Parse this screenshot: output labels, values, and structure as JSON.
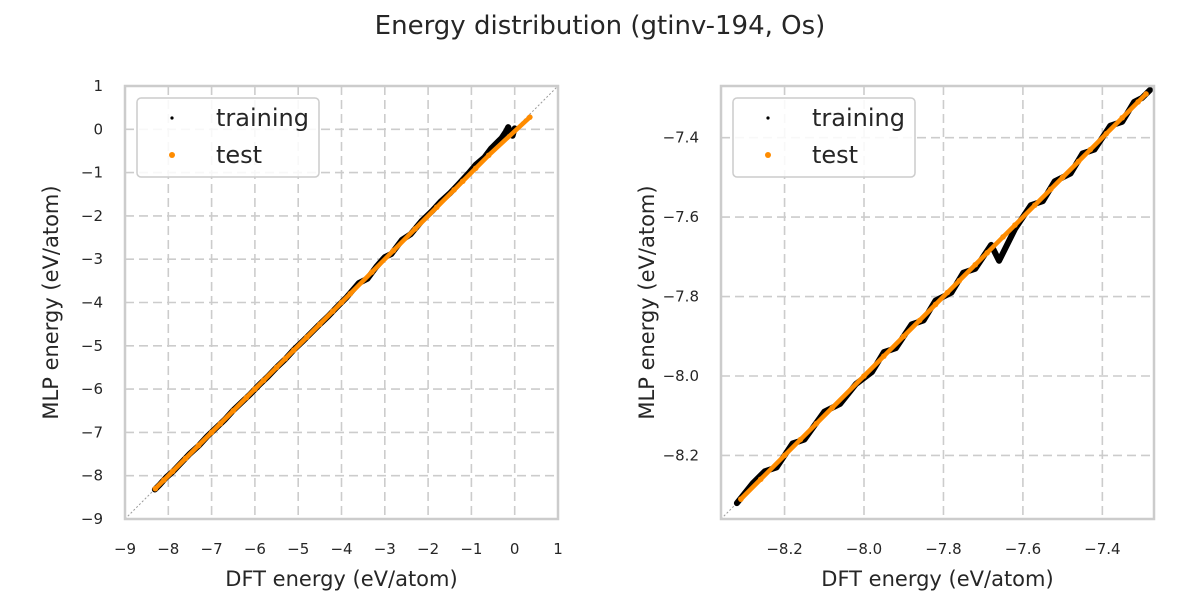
{
  "figure_title": "Energy distribution (gtinv-194, Os)",
  "chart_data": [
    {
      "type": "scatter",
      "title": "",
      "xlabel": "DFT energy (eV/atom)",
      "ylabel": "MLP energy (eV/atom)",
      "xlim": [
        -9,
        1
      ],
      "ylim": [
        -9,
        1
      ],
      "xticks": [
        -9,
        -8,
        -7,
        -6,
        -5,
        -4,
        -3,
        -2,
        -1,
        0,
        1
      ],
      "yticks": [
        -9,
        -8,
        -7,
        -6,
        -5,
        -4,
        -3,
        -2,
        -1,
        0,
        1
      ],
      "xtick_labels": [
        "−9",
        "−8",
        "−7",
        "−6",
        "−5",
        "−4",
        "−3",
        "−2",
        "−1",
        "0",
        "1"
      ],
      "ytick_labels": [
        "−9",
        "−8",
        "−7",
        "−6",
        "−5",
        "−4",
        "−3",
        "−2",
        "−1",
        "0",
        "1"
      ],
      "grid": true,
      "legend_position": "top-left",
      "reference_line": "y = x",
      "series": [
        {
          "name": "training",
          "color": "#000000",
          "marker_size": 1.5,
          "points": [
            [
              -8.31,
              -8.32
            ],
            [
              -8.2,
              -8.21
            ],
            [
              -8.05,
              -8.04
            ],
            [
              -7.9,
              -7.91
            ],
            [
              -7.7,
              -7.7
            ],
            [
              -7.5,
              -7.49
            ],
            [
              -7.3,
              -7.31
            ],
            [
              -7.1,
              -7.09
            ],
            [
              -6.9,
              -6.9
            ],
            [
              -6.7,
              -6.71
            ],
            [
              -6.5,
              -6.49
            ],
            [
              -6.3,
              -6.3
            ],
            [
              -6.1,
              -6.11
            ],
            [
              -5.9,
              -5.9
            ],
            [
              -5.7,
              -5.71
            ],
            [
              -5.5,
              -5.5
            ],
            [
              -5.3,
              -5.31
            ],
            [
              -5.1,
              -5.09
            ],
            [
              -4.9,
              -4.9
            ],
            [
              -4.7,
              -4.7
            ],
            [
              -4.5,
              -4.5
            ],
            [
              -4.3,
              -4.31
            ],
            [
              -4.1,
              -4.1
            ],
            [
              -3.9,
              -3.9
            ],
            [
              -3.6,
              -3.55
            ],
            [
              -3.4,
              -3.45
            ],
            [
              -3.2,
              -3.18
            ],
            [
              -3.0,
              -2.95
            ],
            [
              -2.85,
              -2.88
            ],
            [
              -2.6,
              -2.55
            ],
            [
              -2.4,
              -2.42
            ],
            [
              -2.15,
              -2.12
            ],
            [
              -1.9,
              -1.88
            ],
            [
              -1.7,
              -1.66
            ],
            [
              -1.5,
              -1.48
            ],
            [
              -1.3,
              -1.27
            ],
            [
              -1.05,
              -1.0
            ],
            [
              -0.9,
              -0.82
            ],
            [
              -0.7,
              -0.65
            ],
            [
              -0.55,
              -0.45
            ],
            [
              -0.4,
              -0.3
            ],
            [
              -0.3,
              -0.2
            ],
            [
              -0.2,
              -0.05
            ],
            [
              -0.1,
              -0.08
            ],
            [
              0.0,
              0.02
            ],
            [
              -0.05,
              -0.15
            ],
            [
              -0.15,
              0.05
            ]
          ]
        },
        {
          "name": "test",
          "color": "#ff8c00",
          "marker_size": 2.8,
          "points": [
            [
              -8.3,
              -8.3
            ],
            [
              -8.1,
              -8.1
            ],
            [
              -7.9,
              -7.9
            ],
            [
              -7.6,
              -7.6
            ],
            [
              -7.3,
              -7.3
            ],
            [
              -7.0,
              -7.0
            ],
            [
              -6.8,
              -6.8
            ],
            [
              -6.5,
              -6.5
            ],
            [
              -6.2,
              -6.2
            ],
            [
              -6.0,
              -6.0
            ],
            [
              -5.8,
              -5.8
            ],
            [
              -5.5,
              -5.5
            ],
            [
              -5.3,
              -5.3
            ],
            [
              -5.1,
              -5.1
            ],
            [
              -4.8,
              -4.8
            ],
            [
              -4.5,
              -4.5
            ],
            [
              -4.2,
              -4.2
            ],
            [
              -4.0,
              -4.0
            ],
            [
              -3.8,
              -3.8
            ],
            [
              -3.3,
              -3.3
            ],
            [
              -2.8,
              -2.8
            ],
            [
              -2.3,
              -2.3
            ],
            [
              -1.8,
              -1.8
            ],
            [
              -1.4,
              -1.4
            ],
            [
              -1.2,
              -1.2
            ],
            [
              -0.9,
              -0.9
            ],
            [
              -0.6,
              -0.6
            ],
            [
              0.35,
              0.28
            ]
          ]
        }
      ]
    },
    {
      "type": "scatter",
      "title": "",
      "xlabel": "DFT energy (eV/atom)",
      "ylabel": "MLP energy (eV/atom)",
      "xlim": [
        -8.36,
        -7.27
      ],
      "ylim": [
        -8.36,
        -7.27
      ],
      "xticks": [
        -8.2,
        -8.0,
        -7.8,
        -7.6,
        -7.4
      ],
      "yticks": [
        -8.2,
        -8.0,
        -7.8,
        -7.6,
        -7.4
      ],
      "xtick_labels": [
        "−8.2",
        "−8.0",
        "−7.8",
        "−7.6",
        "−7.4"
      ],
      "ytick_labels": [
        "−8.2",
        "−8.0",
        "−7.8",
        "−7.6",
        "−7.4"
      ],
      "grid": true,
      "legend_position": "top-left",
      "reference_line": "y = x",
      "series": [
        {
          "name": "training",
          "color": "#000000",
          "marker_size": 1.5,
          "points": [
            [
              -8.32,
              -8.32
            ],
            [
              -8.28,
              -8.27
            ],
            [
              -8.25,
              -8.24
            ],
            [
              -8.22,
              -8.23
            ],
            [
              -8.18,
              -8.17
            ],
            [
              -8.15,
              -8.16
            ],
            [
              -8.1,
              -8.09
            ],
            [
              -8.06,
              -8.07
            ],
            [
              -8.02,
              -8.02
            ],
            [
              -7.98,
              -7.99
            ],
            [
              -7.95,
              -7.94
            ],
            [
              -7.92,
              -7.93
            ],
            [
              -7.88,
              -7.87
            ],
            [
              -7.85,
              -7.86
            ],
            [
              -7.82,
              -7.81
            ],
            [
              -7.78,
              -7.79
            ],
            [
              -7.75,
              -7.74
            ],
            [
              -7.72,
              -7.73
            ],
            [
              -7.68,
              -7.67
            ],
            [
              -7.66,
              -7.71
            ],
            [
              -7.62,
              -7.63
            ],
            [
              -7.58,
              -7.57
            ],
            [
              -7.55,
              -7.56
            ],
            [
              -7.52,
              -7.51
            ],
            [
              -7.48,
              -7.49
            ],
            [
              -7.45,
              -7.44
            ],
            [
              -7.42,
              -7.43
            ],
            [
              -7.38,
              -7.37
            ],
            [
              -7.35,
              -7.36
            ],
            [
              -7.32,
              -7.31
            ],
            [
              -7.3,
              -7.3
            ],
            [
              -7.28,
              -7.28
            ]
          ]
        },
        {
          "name": "test",
          "color": "#ff8c00",
          "marker_size": 2.8,
          "points": [
            [
              -8.31,
              -8.31
            ],
            [
              -8.26,
              -8.26
            ],
            [
              -8.2,
              -8.2
            ],
            [
              -8.16,
              -8.16
            ],
            [
              -8.12,
              -8.12
            ],
            [
              -8.08,
              -8.08
            ],
            [
              -8.0,
              -8.0
            ],
            [
              -7.95,
              -7.95
            ],
            [
              -7.9,
              -7.9
            ],
            [
              -7.86,
              -7.86
            ],
            [
              -7.82,
              -7.82
            ],
            [
              -7.79,
              -7.79
            ],
            [
              -7.76,
              -7.76
            ],
            [
              -7.72,
              -7.72
            ],
            [
              -7.69,
              -7.69
            ],
            [
              -7.65,
              -7.65
            ],
            [
              -7.62,
              -7.62
            ],
            [
              -7.57,
              -7.57
            ],
            [
              -7.53,
              -7.53
            ],
            [
              -7.5,
              -7.5
            ],
            [
              -7.46,
              -7.46
            ],
            [
              -7.43,
              -7.43
            ],
            [
              -7.39,
              -7.39
            ],
            [
              -7.35,
              -7.35
            ],
            [
              -7.31,
              -7.31
            ],
            [
              -7.29,
              -7.29
            ]
          ]
        }
      ]
    }
  ]
}
